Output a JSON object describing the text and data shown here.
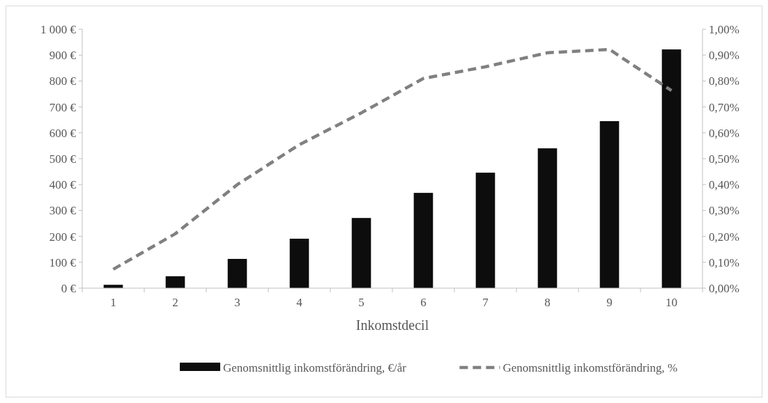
{
  "chart_data": {
    "type": "bar",
    "xlabel": "Inkomstdecil",
    "categories": [
      "1",
      "2",
      "3",
      "4",
      "5",
      "6",
      "7",
      "8",
      "9",
      "10"
    ],
    "series": [
      {
        "name": "Genomsnittlig inkomstförändring, €/år",
        "color": "#0d0d0d",
        "values": [
          13,
          46,
          113,
          191,
          271,
          368,
          446,
          540,
          645,
          922
        ]
      },
      {
        "name": "Genomsnittlig inkomstförändring, %",
        "type": "line",
        "axis": "y2",
        "color": "#808080",
        "line_style": "dashed",
        "values": [
          0.073,
          0.21,
          0.4,
          0.554,
          0.677,
          0.81,
          0.855,
          0.909,
          0.922,
          0.763
        ]
      }
    ],
    "ylim": [
      0,
      1000
    ],
    "yticks": [
      {
        "value": 0,
        "label": "0 €"
      },
      {
        "value": 100,
        "label": "100 €"
      },
      {
        "value": 200,
        "label": "200 €"
      },
      {
        "value": 300,
        "label": "300 €"
      },
      {
        "value": 400,
        "label": "400 €"
      },
      {
        "value": 500,
        "label": "500 €"
      },
      {
        "value": 600,
        "label": "600 €"
      },
      {
        "value": 700,
        "label": "700 €"
      },
      {
        "value": 800,
        "label": "800 €"
      },
      {
        "value": 900,
        "label": "900 €"
      },
      {
        "value": 1000,
        "label": "1 000 €"
      }
    ],
    "y2lim": [
      0,
      1
    ],
    "y2ticks": [
      {
        "value": 0,
        "label": "0,00%"
      },
      {
        "value": 0.1,
        "label": "0,10%"
      },
      {
        "value": 0.2,
        "label": "0,20%"
      },
      {
        "value": 0.3,
        "label": "0,30%"
      },
      {
        "value": 0.4,
        "label": "0,40%"
      },
      {
        "value": 0.5,
        "label": "0,50%"
      },
      {
        "value": 0.6,
        "label": "0,60%"
      },
      {
        "value": 0.7,
        "label": "0,70%"
      },
      {
        "value": 0.8,
        "label": "0,80%"
      },
      {
        "value": 0.9,
        "label": "0,90%"
      },
      {
        "value": 1,
        "label": "1,00%"
      }
    ],
    "grid": false,
    "legend": "bottom",
    "marker": "none"
  }
}
